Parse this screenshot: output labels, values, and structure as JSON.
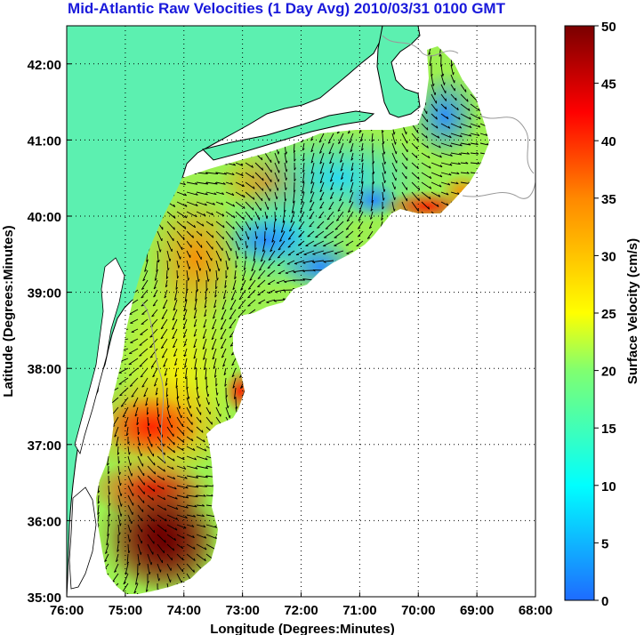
{
  "title": "Mid-Atlantic Raw Velocities (1 Day Avg) 2010/03/31 0100 GMT",
  "map": {
    "xlabel": "Longitude (Degrees:Minutes)",
    "ylabel": "Latitude (Degrees:Minutes)",
    "x_ticks": [
      "76:00",
      "75:00",
      "74:00",
      "73:00",
      "72:00",
      "71:00",
      "70:00",
      "69:00",
      "68:00"
    ],
    "y_ticks": [
      "42:00",
      "41:00",
      "40:00",
      "39:00",
      "38:00",
      "37:00",
      "36:00",
      "35:00"
    ],
    "lon_range": [
      -76,
      -68
    ],
    "lat_range": [
      35,
      42.5
    ],
    "grid": "dotted",
    "land_color": "#5cf0b0",
    "coast_color": "#000000"
  },
  "colorbar": {
    "label": "Surface Velocity (cm/s)",
    "ticks": [
      "50",
      "45",
      "40",
      "35",
      "30",
      "25",
      "20",
      "15",
      "10",
      "5",
      "0"
    ],
    "range": [
      0,
      50
    ],
    "colormap": [
      "#1e6bff",
      "#00ffff",
      "#80ff70",
      "#ffff00",
      "#ff8800",
      "#ff0000",
      "#7a0000"
    ]
  }
}
